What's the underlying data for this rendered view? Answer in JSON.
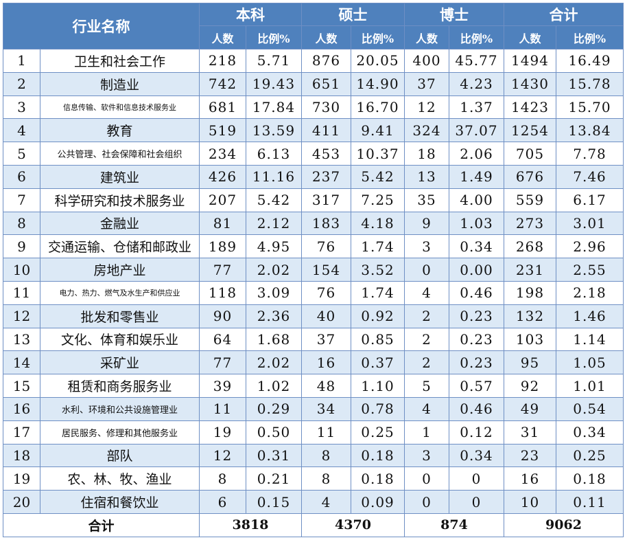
{
  "header": {
    "industry": "行业名称",
    "groups": [
      "本科",
      "硕士",
      "博士",
      "合计"
    ],
    "sub": [
      "人数",
      "比例%"
    ]
  },
  "rows": [
    {
      "no": "1",
      "name": "卫生和社会工作",
      "bk_n": "218",
      "bk_p": "5.71",
      "ss_n": "876",
      "ss_p": "20.05",
      "bs_n": "400",
      "bs_p": "45.77",
      "hj_n": "1494",
      "hj_p": "16.49"
    },
    {
      "no": "2",
      "name": "制造业",
      "bk_n": "742",
      "bk_p": "19.43",
      "ss_n": "651",
      "ss_p": "14.90",
      "bs_n": "37",
      "bs_p": "4.23",
      "hj_n": "1430",
      "hj_p": "15.78"
    },
    {
      "no": "3",
      "name": "信息传输、软件和信息技术服务业",
      "bk_n": "681",
      "bk_p": "17.84",
      "ss_n": "730",
      "ss_p": "16.70",
      "bs_n": "12",
      "bs_p": "1.37",
      "hj_n": "1423",
      "hj_p": "15.70"
    },
    {
      "no": "4",
      "name": "教育",
      "bk_n": "519",
      "bk_p": "13.59",
      "ss_n": "411",
      "ss_p": "9.41",
      "bs_n": "324",
      "bs_p": "37.07",
      "hj_n": "1254",
      "hj_p": "13.84"
    },
    {
      "no": "5",
      "name": "公共管理、社会保障和社会组织",
      "bk_n": "234",
      "bk_p": "6.13",
      "ss_n": "453",
      "ss_p": "10.37",
      "bs_n": "18",
      "bs_p": "2.06",
      "hj_n": "705",
      "hj_p": "7.78"
    },
    {
      "no": "6",
      "name": "建筑业",
      "bk_n": "426",
      "bk_p": "11.16",
      "ss_n": "237",
      "ss_p": "5.42",
      "bs_n": "13",
      "bs_p": "1.49",
      "hj_n": "676",
      "hj_p": "7.46"
    },
    {
      "no": "7",
      "name": "科学研究和技术服务业",
      "bk_n": "207",
      "bk_p": "5.42",
      "ss_n": "317",
      "ss_p": "7.25",
      "bs_n": "35",
      "bs_p": "4.00",
      "hj_n": "559",
      "hj_p": "6.17"
    },
    {
      "no": "8",
      "name": "金融业",
      "bk_n": "81",
      "bk_p": "2.12",
      "ss_n": "183",
      "ss_p": "4.18",
      "bs_n": "9",
      "bs_p": "1.03",
      "hj_n": "273",
      "hj_p": "3.01"
    },
    {
      "no": "9",
      "name": "交通运输、仓储和邮政业",
      "bk_n": "189",
      "bk_p": "4.95",
      "ss_n": "76",
      "ss_p": "1.74",
      "bs_n": "3",
      "bs_p": "0.34",
      "hj_n": "268",
      "hj_p": "2.96"
    },
    {
      "no": "10",
      "name": "房地产业",
      "bk_n": "77",
      "bk_p": "2.02",
      "ss_n": "154",
      "ss_p": "3.52",
      "bs_n": "0",
      "bs_p": "0.00",
      "hj_n": "231",
      "hj_p": "2.55"
    },
    {
      "no": "11",
      "name": "电力、热力、燃气及水生产和供应业",
      "bk_n": "118",
      "bk_p": "3.09",
      "ss_n": "76",
      "ss_p": "1.74",
      "bs_n": "4",
      "bs_p": "0.46",
      "hj_n": "198",
      "hj_p": "2.18"
    },
    {
      "no": "12",
      "name": "批发和零售业",
      "bk_n": "90",
      "bk_p": "2.36",
      "ss_n": "40",
      "ss_p": "0.92",
      "bs_n": "2",
      "bs_p": "0.23",
      "hj_n": "132",
      "hj_p": "1.46"
    },
    {
      "no": "13",
      "name": "文化、体育和娱乐业",
      "bk_n": "64",
      "bk_p": "1.68",
      "ss_n": "37",
      "ss_p": "0.85",
      "bs_n": "2",
      "bs_p": "0.23",
      "hj_n": "103",
      "hj_p": "1.14"
    },
    {
      "no": "14",
      "name": "采矿业",
      "bk_n": "77",
      "bk_p": "2.02",
      "ss_n": "16",
      "ss_p": "0.37",
      "bs_n": "2",
      "bs_p": "0.23",
      "hj_n": "95",
      "hj_p": "1.05"
    },
    {
      "no": "15",
      "name": "租赁和商务服务业",
      "bk_n": "39",
      "bk_p": "1.02",
      "ss_n": "48",
      "ss_p": "1.10",
      "bs_n": "5",
      "bs_p": "0.57",
      "hj_n": "92",
      "hj_p": "1.01"
    },
    {
      "no": "16",
      "name": "水利、环境和公共设施管理业",
      "bk_n": "11",
      "bk_p": "0.29",
      "ss_n": "34",
      "ss_p": "0.78",
      "bs_n": "4",
      "bs_p": "0.46",
      "hj_n": "49",
      "hj_p": "0.54"
    },
    {
      "no": "17",
      "name": "居民服务、修理和其他服务业",
      "bk_n": "19",
      "bk_p": "0.50",
      "ss_n": "11",
      "ss_p": "0.25",
      "bs_n": "1",
      "bs_p": "0.12",
      "hj_n": "31",
      "hj_p": "0.34"
    },
    {
      "no": "18",
      "name": "部队",
      "bk_n": "12",
      "bk_p": "0.31",
      "ss_n": "8",
      "ss_p": "0.18",
      "bs_n": "3",
      "bs_p": "0.34",
      "hj_n": "23",
      "hj_p": "0.25"
    },
    {
      "no": "19",
      "name": "农、林、牧、渔业",
      "bk_n": "8",
      "bk_p": "0.21",
      "ss_n": "8",
      "ss_p": "0.18",
      "bs_n": "0",
      "bs_p": "0",
      "hj_n": "16",
      "hj_p": "0.18"
    },
    {
      "no": "20",
      "name": "住宿和餐饮业",
      "bk_n": "6",
      "bk_p": "0.15",
      "ss_n": "4",
      "ss_p": "0.09",
      "bs_n": "0",
      "bs_p": "0",
      "hj_n": "10",
      "hj_p": "0.11"
    }
  ],
  "totals": {
    "label": "合计",
    "bk": "3818",
    "ss": "4370",
    "bs": "874",
    "hj": "9062"
  }
}
